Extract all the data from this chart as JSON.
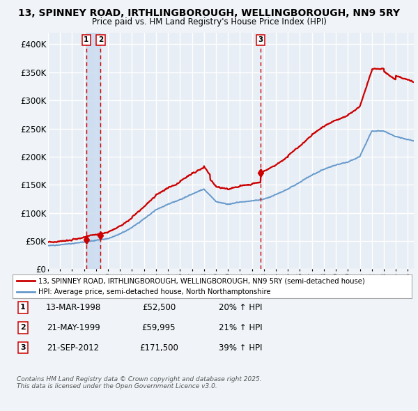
{
  "title_line1": "13, SPINNEY ROAD, IRTHLINGBOROUGH, WELLINGBOROUGH, NN9 5RY",
  "title_line2": "Price paid vs. HM Land Registry's House Price Index (HPI)",
  "bg_color": "#f0f4f8",
  "plot_bg_color": "#e8eef5",
  "red_color": "#cc0000",
  "blue_color": "#6699cc",
  "shade_color": "#ccddf0",
  "grid_color": "#ffffff",
  "ylim": [
    0,
    420000
  ],
  "yticks": [
    0,
    50000,
    100000,
    150000,
    200000,
    250000,
    300000,
    350000,
    400000
  ],
  "ytick_labels": [
    "£0",
    "£50K",
    "£100K",
    "£150K",
    "£200K",
    "£250K",
    "£300K",
    "£350K",
    "£400K"
  ],
  "sale1_date": 1998.19,
  "sale1_price": 52500,
  "sale2_date": 1999.38,
  "sale2_price": 59995,
  "sale3_date": 2012.72,
  "sale3_price": 171500,
  "legend_red": "13, SPINNEY ROAD, IRTHLINGBOROUGH, WELLINGBOROUGH, NN9 5RY (semi-detached house)",
  "legend_blue": "HPI: Average price, semi-detached house, North Northamptonshire",
  "table_rows": [
    {
      "num": "1",
      "date": "13-MAR-1998",
      "price": "£52,500",
      "change": "20% ↑ HPI"
    },
    {
      "num": "2",
      "date": "21-MAY-1999",
      "price": "£59,995",
      "change": "21% ↑ HPI"
    },
    {
      "num": "3",
      "date": "21-SEP-2012",
      "price": "£171,500",
      "change": "39% ↑ HPI"
    }
  ],
  "footer": "Contains HM Land Registry data © Crown copyright and database right 2025.\nThis data is licensed under the Open Government Licence v3.0.",
  "xstart": 1995.0,
  "xend": 2025.5
}
